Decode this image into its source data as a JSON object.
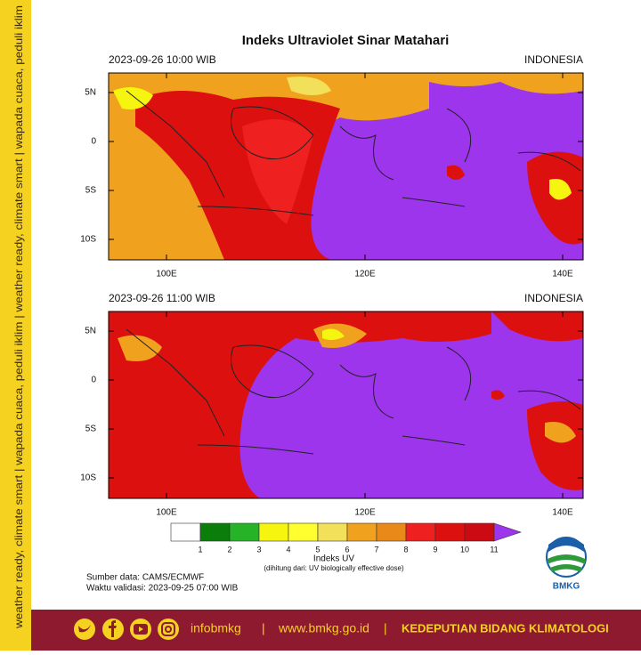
{
  "side_text": "weather ready, climate smart | wapada cuaca, peduli iklim | weather ready, climate smart | wapada cuaca, peduli iklim",
  "title": "Indeks Ultraviolet Sinar Matahari",
  "panels": [
    {
      "time": "2023-09-26  10:00 WIB",
      "region": "INDONESIA"
    },
    {
      "time": "2023-09-26  11:00 WIB",
      "region": "INDONESIA"
    }
  ],
  "lat_ticks": [
    "5N",
    "0",
    "5S",
    "10S"
  ],
  "lon_ticks": [
    "100E",
    "120E",
    "140E"
  ],
  "colorbar": {
    "title": "Indeks UV",
    "note": "(dihitung dari: UV biologically effective dose)",
    "ticks": [
      1,
      2,
      3,
      4,
      5,
      6,
      7,
      8,
      9,
      10,
      11
    ],
    "colors": [
      "#ffffff",
      "#0b7d0b",
      "#27b327",
      "#f5f510",
      "#ffff30",
      "#f2e05a",
      "#f0a21e",
      "#e8891a",
      "#ee2020",
      "#dd1010",
      "#cc0a14",
      "#9d35ec"
    ]
  },
  "source": "Sumber data: CAMS/ECMWF",
  "validity": "Waktu validasi: 2023-09-25 07:00 WIB",
  "logo": "BMKG",
  "footer": {
    "handle": "infobmkg",
    "separator": "|",
    "website": "www.bmkg.go.id",
    "unit": "KEDEPUTIAN BIDANG KLIMATOLOGI"
  }
}
